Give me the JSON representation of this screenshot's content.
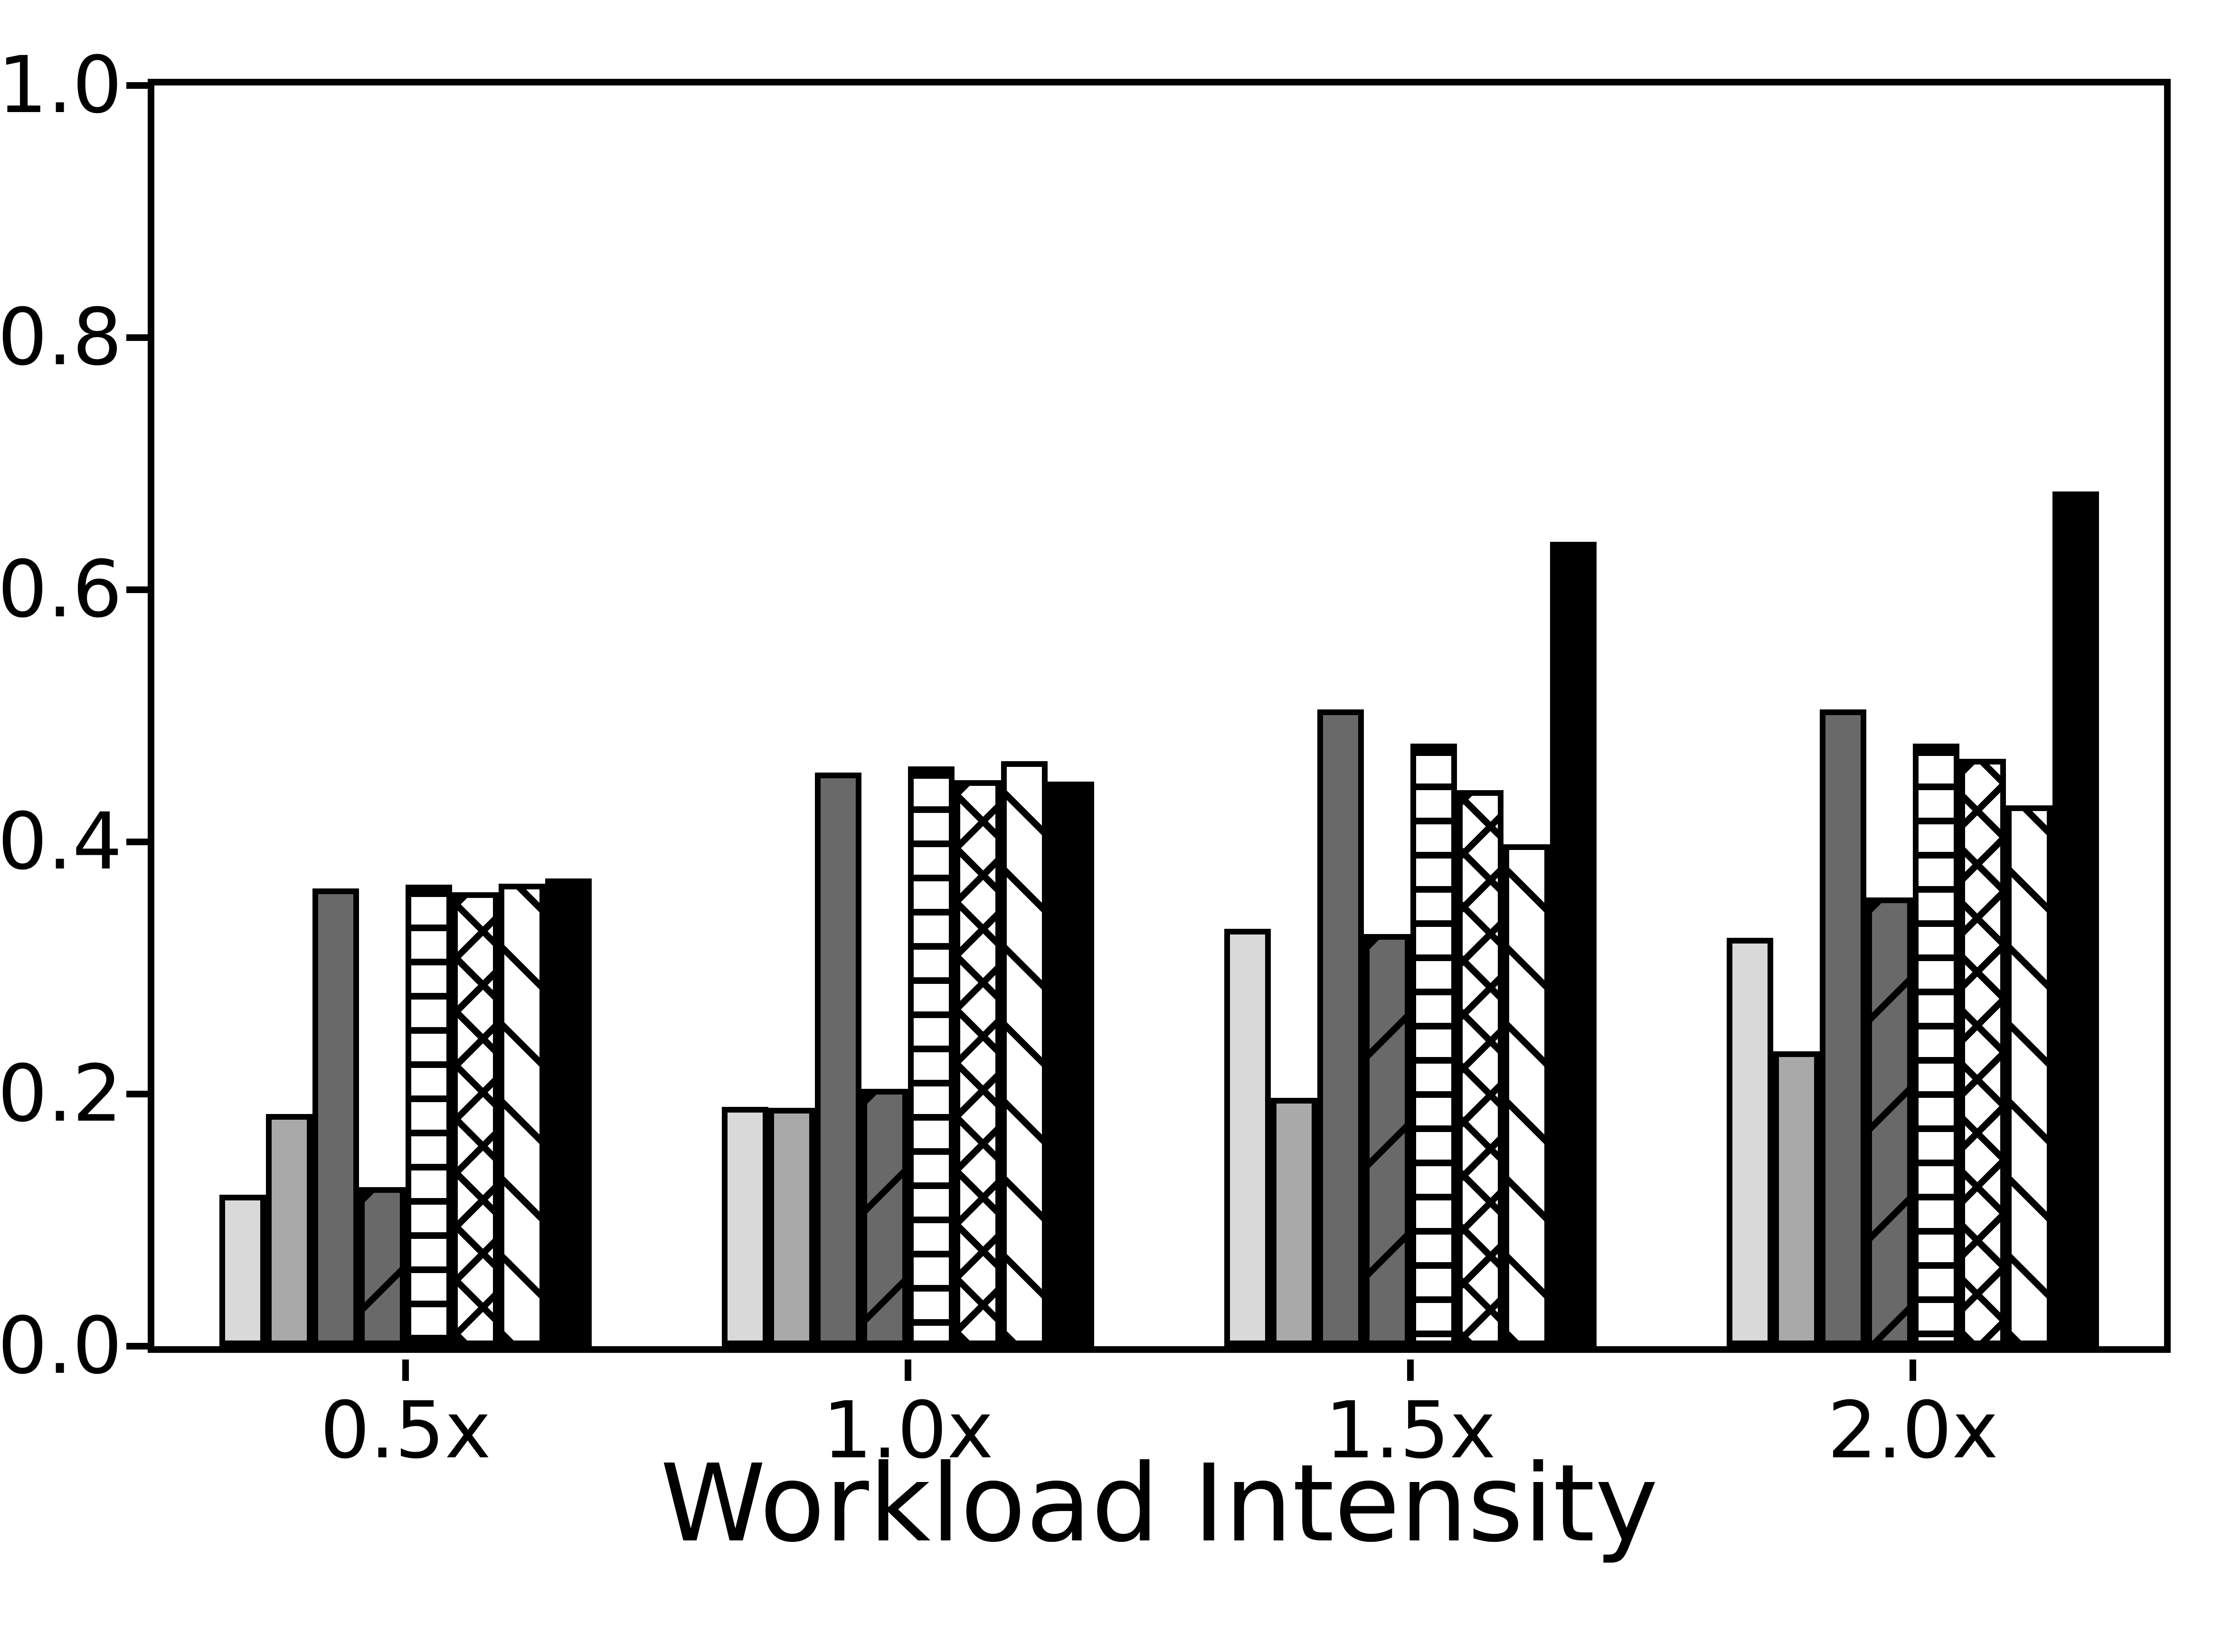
{
  "chart_data": {
    "type": "bar",
    "title": "",
    "xlabel": "Workload Intensity",
    "ylabel": "",
    "ylim": [
      0.0,
      1.0
    ],
    "yticks": [
      "0.0",
      "0.2",
      "0.4",
      "0.6",
      "0.8",
      "1.0"
    ],
    "grid": false,
    "legend": "none",
    "categories": [
      "0.5x",
      "1.0x",
      "1.5x",
      "2.0x"
    ],
    "series": [
      {
        "name": "light-gray-solid",
        "style": "light",
        "fill": "#d9d9d9",
        "hatch": "none",
        "values": [
          0.12,
          0.19,
          0.331,
          0.324
        ]
      },
      {
        "name": "gray-solid",
        "style": "mid",
        "fill": "#a9a9a9",
        "hatch": "none",
        "values": [
          0.184,
          0.189,
          0.197,
          0.234
        ]
      },
      {
        "name": "dark-gray-solid",
        "style": "dark",
        "fill": "#696969",
        "hatch": "none",
        "values": [
          0.363,
          0.455,
          0.505,
          0.505
        ]
      },
      {
        "name": "dark-gray-diagonal",
        "style": "dark-diag",
        "fill": "#696969",
        "hatch": "/",
        "values": [
          0.126,
          0.204,
          0.327,
          0.356
        ]
      },
      {
        "name": "white-horizontal-lines",
        "style": "hlines",
        "fill": "#ffffff",
        "hatch": "-",
        "values": [
          0.366,
          0.46,
          0.478,
          0.478
        ]
      },
      {
        "name": "white-crosshatch",
        "style": "cross",
        "fill": "#ffffff",
        "hatch": "x",
        "values": [
          0.36,
          0.449,
          0.441,
          0.466
        ]
      },
      {
        "name": "white-diagonal",
        "style": "diag",
        "fill": "#ffffff",
        "hatch": "\\",
        "values": [
          0.367,
          0.464,
          0.398,
          0.429
        ]
      },
      {
        "name": "black-solid",
        "style": "black",
        "fill": "#000000",
        "hatch": "none",
        "values": [
          0.371,
          0.448,
          0.638,
          0.678
        ]
      }
    ],
    "colors": {
      "axis": "#000000",
      "background": "#ffffff"
    }
  }
}
